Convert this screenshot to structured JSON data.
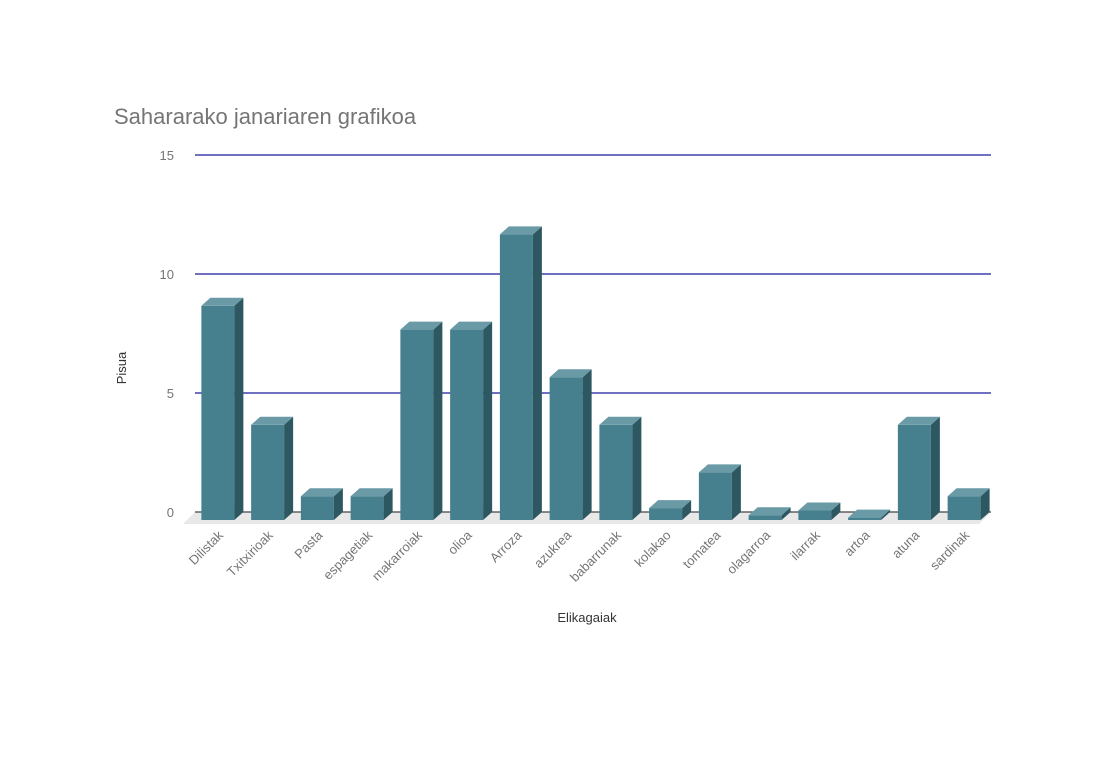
{
  "chart_data": {
    "type": "bar",
    "title": "Sahararako janariaren grafikoa",
    "xlabel": "Elikagaiak",
    "ylabel": "Pisua",
    "categories": [
      "Dilistak",
      "Txitxirioak",
      "Pasta",
      "espagetiak",
      "makarroiak",
      "olioa",
      "Arroza",
      "azukrea",
      "babarrunak",
      "kolakao",
      "tomatea",
      "olagarroa",
      "ilarrak",
      "artoa",
      "atuna",
      "sardinak"
    ],
    "series": [
      {
        "values": [
          9,
          4,
          1,
          1,
          8,
          8,
          12,
          6,
          4,
          0.5,
          2,
          0.2,
          0.4,
          0.1,
          4,
          1
        ]
      }
    ],
    "ylim": [
      0,
      15
    ],
    "yticks": [
      0,
      5,
      10,
      15
    ],
    "grid": true,
    "legend": "none",
    "style": "3d-column"
  },
  "colors": {
    "bar_front": "#46808e",
    "bar_top": "#6a9aa5",
    "bar_side": "#2d5861",
    "gridline": "#1a1a9e",
    "floor": "#e8e8e8",
    "baseline": "#444444"
  }
}
